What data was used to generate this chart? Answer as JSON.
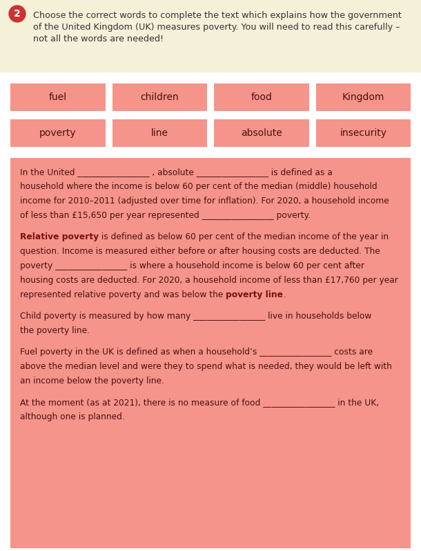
{
  "bg_color": "#ffffff",
  "header_bg": "#f5f0d8",
  "header_circle_color": "#cc3333",
  "header_text_line1": "Choose the correct words to complete the text which explains how the government",
  "header_text_line2": "of the United Kingdom (UK) measures poverty. You will need to read this carefully –",
  "header_text_line3": "not all the words are needed!",
  "word_box_color": "#f5948a",
  "words_row1": [
    "fuel",
    "children",
    "food",
    "Kingdom"
  ],
  "words_row2": [
    "poverty",
    "line",
    "absolute",
    "insecurity"
  ],
  "text_box_color": "#f5948a",
  "text_color_dark": "#4a1010",
  "text_color_bold": "#7a1010",
  "body_lines": [
    {
      "type": "normal",
      "text": "In the United _________________ , absolute _________________ is defined as a"
    },
    {
      "type": "normal",
      "text": "household where the income is below 60 per cent of the median (middle) household"
    },
    {
      "type": "normal",
      "text": "income for 2010–2011 (adjusted over time for inflation). For 2020, a household income"
    },
    {
      "type": "normal",
      "text": "of less than £15,650 per year represented _________________ poverty."
    },
    {
      "type": "blank"
    },
    {
      "type": "mixed",
      "parts": [
        {
          "bold": true,
          "text": "Relative poverty"
        },
        {
          "bold": false,
          "text": " is defined as below 60 per cent of the median income of the year in"
        }
      ]
    },
    {
      "type": "normal",
      "text": "question. Income is measured either before or after housing costs are deducted. The"
    },
    {
      "type": "normal",
      "text": "poverty _________________ is where a household income is below 60 per cent after"
    },
    {
      "type": "normal",
      "text": "housing costs are deducted. For 2020, a household income of less than £17,760 per year"
    },
    {
      "type": "mixed",
      "parts": [
        {
          "bold": false,
          "text": "represented relative poverty and was below the "
        },
        {
          "bold": true,
          "text": "poverty line"
        },
        {
          "bold": false,
          "text": "."
        }
      ]
    },
    {
      "type": "blank"
    },
    {
      "type": "normal",
      "text": "Child poverty is measured by how many _________________ live in households below"
    },
    {
      "type": "normal",
      "text": "the poverty line."
    },
    {
      "type": "blank"
    },
    {
      "type": "normal",
      "text": "Fuel poverty in the UK is defined as when a household’s _________________ costs are"
    },
    {
      "type": "normal",
      "text": "above the median level and were they to spend what is needed, they would be left with"
    },
    {
      "type": "normal",
      "text": "an income below the poverty line."
    },
    {
      "type": "blank"
    },
    {
      "type": "normal",
      "text": "At the moment (as at 2021), there is no measure of food _________________ in the UK,"
    },
    {
      "type": "normal",
      "text": "although one is planned."
    }
  ]
}
